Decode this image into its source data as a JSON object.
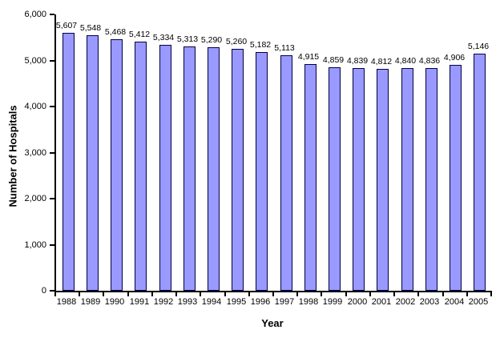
{
  "chart_data": {
    "type": "bar",
    "title": "",
    "xlabel": "Year",
    "ylabel": "Number of Hospitals",
    "categories": [
      "1988",
      "1989",
      "1990",
      "1991",
      "1992",
      "1993",
      "1994",
      "1995",
      "1996",
      "1997",
      "1998",
      "1999",
      "2000",
      "2001",
      "2002",
      "2003",
      "2004",
      "2005"
    ],
    "values": [
      5607,
      5548,
      5468,
      5412,
      5334,
      5313,
      5290,
      5260,
      5182,
      5113,
      4915,
      4859,
      4839,
      4812,
      4840,
      4836,
      4906,
      5146
    ],
    "value_labels": [
      "5,607",
      "5,548",
      "5,468",
      "5,412",
      "5,334",
      "5,313",
      "5,290",
      "5,260",
      "5,182",
      "5,113",
      "4,915",
      "4,859",
      "4,839",
      "4,812",
      "4,840",
      "4,836",
      "4,906",
      "5,146"
    ],
    "ylim": [
      0,
      6000
    ],
    "ytick_interval": 1000,
    "ytick_labels": [
      "0",
      "1,000",
      "2,000",
      "3,000",
      "4,000",
      "5,000",
      "6,000"
    ],
    "grid": false,
    "legend_position": "none",
    "colors": {
      "bar_fill": "#9999ff",
      "bar_border": "#000040",
      "axis": "#000000",
      "background": "#ffffff",
      "text": "#000000"
    }
  }
}
